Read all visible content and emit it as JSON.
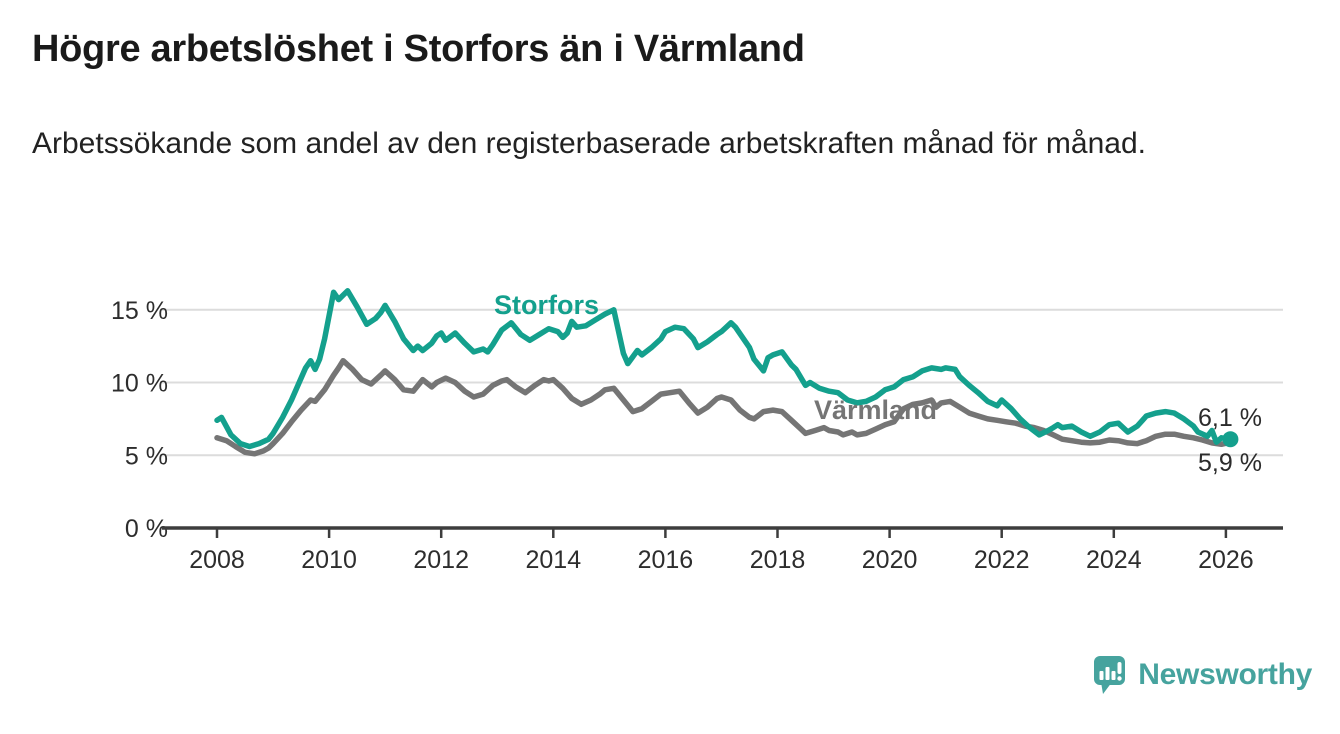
{
  "header": {
    "title": "Högre arbetslöshet i Storfors än i Värmland",
    "subtitle": "Arbetssökande som andel av den registerbaserade arbetskraften månad för månad."
  },
  "chart_data": {
    "type": "line",
    "unit": "percent of registered labour force",
    "x_axis": {
      "tick_years": [
        "2008",
        "2010",
        "2012",
        "2014",
        "2016",
        "2018",
        "2020",
        "2022",
        "2024",
        "2026"
      ],
      "range": [
        2008,
        2026.2
      ]
    },
    "y_axis": {
      "ticks": [
        {
          "value": 0,
          "label": "0 %"
        },
        {
          "value": 5,
          "label": "5 %"
        },
        {
          "value": 10,
          "label": "10 %"
        },
        {
          "value": 15,
          "label": "15 %"
        }
      ],
      "range": [
        0,
        17
      ]
    },
    "grid": true,
    "series": [
      {
        "name": "Storfors",
        "color": "#14a08d",
        "end_label": "6,1 %",
        "end_value": 6.1,
        "points": [
          [
            2008.0,
            7.4
          ],
          [
            2008.08,
            7.6
          ],
          [
            2008.25,
            6.4
          ],
          [
            2008.42,
            5.8
          ],
          [
            2008.58,
            5.6
          ],
          [
            2008.75,
            5.8
          ],
          [
            2008.92,
            6.1
          ],
          [
            2009.0,
            6.5
          ],
          [
            2009.17,
            7.6
          ],
          [
            2009.33,
            8.8
          ],
          [
            2009.5,
            10.3
          ],
          [
            2009.58,
            11.0
          ],
          [
            2009.67,
            11.5
          ],
          [
            2009.75,
            10.9
          ],
          [
            2009.83,
            11.6
          ],
          [
            2009.92,
            13.0
          ],
          [
            2010.08,
            16.2
          ],
          [
            2010.17,
            15.7
          ],
          [
            2010.25,
            16.0
          ],
          [
            2010.33,
            16.3
          ],
          [
            2010.5,
            15.2
          ],
          [
            2010.67,
            14.0
          ],
          [
            2010.83,
            14.4
          ],
          [
            2010.92,
            14.8
          ],
          [
            2011.0,
            15.3
          ],
          [
            2011.17,
            14.2
          ],
          [
            2011.33,
            13.0
          ],
          [
            2011.5,
            12.2
          ],
          [
            2011.58,
            12.5
          ],
          [
            2011.67,
            12.2
          ],
          [
            2011.83,
            12.7
          ],
          [
            2011.92,
            13.2
          ],
          [
            2012.0,
            13.4
          ],
          [
            2012.08,
            12.9
          ],
          [
            2012.25,
            13.4
          ],
          [
            2012.42,
            12.7
          ],
          [
            2012.58,
            12.1
          ],
          [
            2012.75,
            12.3
          ],
          [
            2012.83,
            12.1
          ],
          [
            2012.92,
            12.6
          ],
          [
            2013.08,
            13.6
          ],
          [
            2013.25,
            14.1
          ],
          [
            2013.42,
            13.3
          ],
          [
            2013.58,
            12.9
          ],
          [
            2013.75,
            13.3
          ],
          [
            2013.92,
            13.7
          ],
          [
            2014.08,
            13.5
          ],
          [
            2014.17,
            13.1
          ],
          [
            2014.25,
            13.4
          ],
          [
            2014.33,
            14.2
          ],
          [
            2014.42,
            13.8
          ],
          [
            2014.58,
            13.9
          ],
          [
            2014.75,
            14.3
          ],
          [
            2014.92,
            14.7
          ],
          [
            2015.08,
            15.0
          ],
          [
            2015.25,
            12.0
          ],
          [
            2015.33,
            11.3
          ],
          [
            2015.5,
            12.2
          ],
          [
            2015.58,
            11.9
          ],
          [
            2015.75,
            12.4
          ],
          [
            2015.92,
            13.0
          ],
          [
            2016.0,
            13.5
          ],
          [
            2016.17,
            13.8
          ],
          [
            2016.33,
            13.7
          ],
          [
            2016.5,
            13.0
          ],
          [
            2016.58,
            12.4
          ],
          [
            2016.75,
            12.8
          ],
          [
            2016.92,
            13.3
          ],
          [
            2017.0,
            13.5
          ],
          [
            2017.17,
            14.1
          ],
          [
            2017.25,
            13.8
          ],
          [
            2017.5,
            12.4
          ],
          [
            2017.58,
            11.6
          ],
          [
            2017.75,
            10.8
          ],
          [
            2017.83,
            11.7
          ],
          [
            2017.92,
            11.9
          ],
          [
            2018.08,
            12.1
          ],
          [
            2018.25,
            11.2
          ],
          [
            2018.33,
            10.9
          ],
          [
            2018.5,
            9.8
          ],
          [
            2018.58,
            10.0
          ],
          [
            2018.75,
            9.6
          ],
          [
            2018.92,
            9.4
          ],
          [
            2019.08,
            9.3
          ],
          [
            2019.25,
            8.8
          ],
          [
            2019.42,
            8.6
          ],
          [
            2019.58,
            8.7
          ],
          [
            2019.75,
            9.0
          ],
          [
            2019.92,
            9.5
          ],
          [
            2020.08,
            9.7
          ],
          [
            2020.25,
            10.2
          ],
          [
            2020.42,
            10.4
          ],
          [
            2020.58,
            10.8
          ],
          [
            2020.75,
            11.0
          ],
          [
            2020.92,
            10.9
          ],
          [
            2021.0,
            11.0
          ],
          [
            2021.17,
            10.9
          ],
          [
            2021.25,
            10.4
          ],
          [
            2021.42,
            9.8
          ],
          [
            2021.58,
            9.3
          ],
          [
            2021.75,
            8.7
          ],
          [
            2021.92,
            8.4
          ],
          [
            2022.0,
            8.8
          ],
          [
            2022.17,
            8.2
          ],
          [
            2022.33,
            7.5
          ],
          [
            2022.5,
            6.9
          ],
          [
            2022.67,
            6.4
          ],
          [
            2022.83,
            6.7
          ],
          [
            2022.92,
            6.9
          ],
          [
            2023.0,
            7.1
          ],
          [
            2023.08,
            6.9
          ],
          [
            2023.25,
            7.0
          ],
          [
            2023.42,
            6.6
          ],
          [
            2023.58,
            6.3
          ],
          [
            2023.75,
            6.6
          ],
          [
            2023.92,
            7.1
          ],
          [
            2024.08,
            7.2
          ],
          [
            2024.25,
            6.6
          ],
          [
            2024.42,
            7.0
          ],
          [
            2024.58,
            7.7
          ],
          [
            2024.75,
            7.9
          ],
          [
            2024.92,
            8.0
          ],
          [
            2025.08,
            7.9
          ],
          [
            2025.25,
            7.5
          ],
          [
            2025.42,
            7.0
          ],
          [
            2025.5,
            6.6
          ],
          [
            2025.67,
            6.3
          ],
          [
            2025.75,
            6.7
          ],
          [
            2025.83,
            5.9
          ],
          [
            2025.92,
            6.2
          ],
          [
            2026.08,
            6.1
          ]
        ]
      },
      {
        "name": "Värmland",
        "color": "#757575",
        "end_label": "5,9 %",
        "end_value": 5.9,
        "points": [
          [
            2008.0,
            6.2
          ],
          [
            2008.17,
            6.0
          ],
          [
            2008.33,
            5.6
          ],
          [
            2008.5,
            5.2
          ],
          [
            2008.67,
            5.1
          ],
          [
            2008.83,
            5.3
          ],
          [
            2008.92,
            5.5
          ],
          [
            2009.0,
            5.8
          ],
          [
            2009.17,
            6.5
          ],
          [
            2009.33,
            7.3
          ],
          [
            2009.5,
            8.1
          ],
          [
            2009.67,
            8.8
          ],
          [
            2009.75,
            8.7
          ],
          [
            2009.92,
            9.5
          ],
          [
            2010.08,
            10.5
          ],
          [
            2010.17,
            11.0
          ],
          [
            2010.25,
            11.5
          ],
          [
            2010.42,
            10.9
          ],
          [
            2010.58,
            10.2
          ],
          [
            2010.75,
            9.9
          ],
          [
            2010.92,
            10.5
          ],
          [
            2011.0,
            10.8
          ],
          [
            2011.17,
            10.2
          ],
          [
            2011.33,
            9.5
          ],
          [
            2011.5,
            9.4
          ],
          [
            2011.67,
            10.2
          ],
          [
            2011.83,
            9.7
          ],
          [
            2011.92,
            10.0
          ],
          [
            2012.08,
            10.3
          ],
          [
            2012.25,
            10.0
          ],
          [
            2012.42,
            9.4
          ],
          [
            2012.58,
            9.0
          ],
          [
            2012.75,
            9.2
          ],
          [
            2012.92,
            9.8
          ],
          [
            2013.08,
            10.1
          ],
          [
            2013.17,
            10.2
          ],
          [
            2013.33,
            9.7
          ],
          [
            2013.5,
            9.3
          ],
          [
            2013.67,
            9.8
          ],
          [
            2013.83,
            10.2
          ],
          [
            2013.92,
            10.1
          ],
          [
            2014.0,
            10.2
          ],
          [
            2014.17,
            9.6
          ],
          [
            2014.33,
            8.9
          ],
          [
            2014.5,
            8.5
          ],
          [
            2014.67,
            8.8
          ],
          [
            2014.83,
            9.2
          ],
          [
            2014.92,
            9.5
          ],
          [
            2015.08,
            9.6
          ],
          [
            2015.25,
            8.8
          ],
          [
            2015.42,
            8.0
          ],
          [
            2015.58,
            8.2
          ],
          [
            2015.75,
            8.7
          ],
          [
            2015.92,
            9.2
          ],
          [
            2016.08,
            9.3
          ],
          [
            2016.25,
            9.4
          ],
          [
            2016.42,
            8.6
          ],
          [
            2016.58,
            7.9
          ],
          [
            2016.75,
            8.3
          ],
          [
            2016.92,
            8.9
          ],
          [
            2017.0,
            9.0
          ],
          [
            2017.17,
            8.8
          ],
          [
            2017.33,
            8.1
          ],
          [
            2017.5,
            7.6
          ],
          [
            2017.58,
            7.5
          ],
          [
            2017.75,
            8.0
          ],
          [
            2017.92,
            8.1
          ],
          [
            2018.08,
            8.0
          ],
          [
            2018.25,
            7.4
          ],
          [
            2018.42,
            6.8
          ],
          [
            2018.5,
            6.5
          ],
          [
            2018.67,
            6.7
          ],
          [
            2018.83,
            6.9
          ],
          [
            2018.92,
            6.7
          ],
          [
            2019.08,
            6.6
          ],
          [
            2019.17,
            6.4
          ],
          [
            2019.33,
            6.6
          ],
          [
            2019.42,
            6.4
          ],
          [
            2019.58,
            6.5
          ],
          [
            2019.75,
            6.8
          ],
          [
            2019.92,
            7.1
          ],
          [
            2020.08,
            7.3
          ],
          [
            2020.25,
            8.2
          ],
          [
            2020.42,
            8.5
          ],
          [
            2020.58,
            8.6
          ],
          [
            2020.75,
            8.8
          ],
          [
            2020.83,
            8.3
          ],
          [
            2020.92,
            8.6
          ],
          [
            2021.08,
            8.7
          ],
          [
            2021.25,
            8.3
          ],
          [
            2021.42,
            7.9
          ],
          [
            2021.58,
            7.7
          ],
          [
            2021.75,
            7.5
          ],
          [
            2021.92,
            7.4
          ],
          [
            2022.08,
            7.3
          ],
          [
            2022.25,
            7.2
          ],
          [
            2022.42,
            7.0
          ],
          [
            2022.58,
            6.9
          ],
          [
            2022.75,
            6.7
          ],
          [
            2022.92,
            6.4
          ],
          [
            2023.08,
            6.1
          ],
          [
            2023.25,
            6.0
          ],
          [
            2023.42,
            5.9
          ],
          [
            2023.58,
            5.85
          ],
          [
            2023.75,
            5.9
          ],
          [
            2023.92,
            6.05
          ],
          [
            2024.08,
            6.0
          ],
          [
            2024.25,
            5.85
          ],
          [
            2024.42,
            5.8
          ],
          [
            2024.58,
            6.0
          ],
          [
            2024.75,
            6.3
          ],
          [
            2024.92,
            6.45
          ],
          [
            2025.08,
            6.45
          ],
          [
            2025.25,
            6.3
          ],
          [
            2025.42,
            6.2
          ],
          [
            2025.58,
            6.05
          ],
          [
            2025.75,
            5.85
          ],
          [
            2025.92,
            5.75
          ],
          [
            2026.08,
            5.9
          ]
        ]
      }
    ],
    "title": "Högre arbetslöshet i Storfors än i Värmland",
    "xlabel": "",
    "ylabel": "",
    "legend_position": "inline-labels"
  },
  "colors": {
    "storfors": "#14a08d",
    "varmland": "#757575",
    "grid": "#dcdcdc",
    "axis": "#3d3d3d",
    "text": "#2d2d2d",
    "brand": "#46a39e"
  },
  "footer": {
    "brand": "Newsworthy"
  }
}
